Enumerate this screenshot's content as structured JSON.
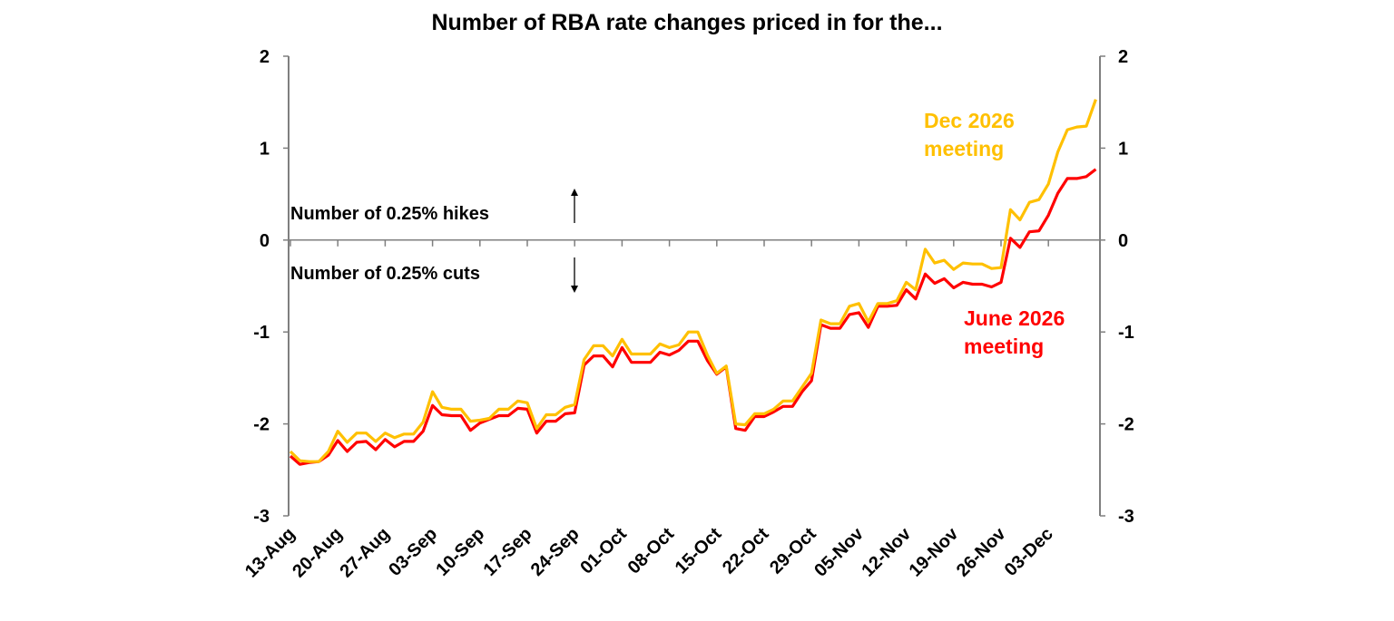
{
  "chart_data": {
    "type": "line",
    "title": "Number of RBA rate changes priced in for the...",
    "xlabel": "",
    "ylabel": "",
    "ylim": [
      -3,
      2
    ],
    "yticks": [
      2,
      1,
      0,
      -1,
      -2,
      -3
    ],
    "xtick_labels": [
      "13-Aug",
      "20-Aug",
      "27-Aug",
      "03-Sep",
      "10-Sep",
      "17-Sep",
      "24-Sep",
      "01-Oct",
      "08-Oct",
      "15-Oct",
      "22-Oct",
      "29-Oct",
      "05-Nov",
      "12-Nov",
      "19-Nov",
      "26-Nov",
      "03-Dec"
    ],
    "grid": false,
    "x": [
      "13-Aug",
      "14-Aug",
      "15-Aug",
      "18-Aug",
      "19-Aug",
      "20-Aug",
      "21-Aug",
      "22-Aug",
      "25-Aug",
      "26-Aug",
      "27-Aug",
      "28-Aug",
      "29-Aug",
      "01-Sep",
      "02-Sep",
      "03-Sep",
      "04-Sep",
      "05-Sep",
      "08-Sep",
      "09-Sep",
      "10-Sep",
      "11-Sep",
      "12-Sep",
      "15-Sep",
      "16-Sep",
      "17-Sep",
      "18-Sep",
      "19-Sep",
      "22-Sep",
      "23-Sep",
      "24-Sep",
      "25-Sep",
      "26-Sep",
      "29-Sep",
      "30-Sep",
      "01-Oct",
      "02-Oct",
      "03-Oct",
      "06-Oct",
      "07-Oct",
      "08-Oct",
      "09-Oct",
      "10-Oct",
      "13-Oct",
      "14-Oct",
      "15-Oct",
      "16-Oct",
      "17-Oct",
      "20-Oct",
      "21-Oct",
      "22-Oct",
      "23-Oct",
      "24-Oct",
      "27-Oct",
      "28-Oct",
      "29-Oct",
      "30-Oct",
      "31-Oct",
      "03-Nov",
      "04-Nov",
      "05-Nov",
      "06-Nov",
      "07-Nov",
      "10-Nov",
      "11-Nov",
      "12-Nov",
      "13-Nov",
      "14-Nov",
      "17-Nov",
      "18-Nov",
      "19-Nov",
      "20-Nov",
      "21-Nov",
      "24-Nov",
      "25-Nov",
      "26-Nov",
      "27-Nov",
      "28-Nov",
      "01-Dec",
      "02-Dec",
      "03-Dec",
      "04-Dec",
      "05-Dec",
      "08-Dec",
      "09-Dec",
      "10-Dec"
    ],
    "series": [
      {
        "name": "Dec 2026 meeting",
        "color": "#FFC000",
        "values": [
          -2.3,
          -2.4,
          -2.41,
          -2.41,
          -2.3,
          -2.08,
          -2.2,
          -2.1,
          -2.1,
          -2.19,
          -2.1,
          -2.15,
          -2.11,
          -2.11,
          -1.98,
          -1.65,
          -1.82,
          -1.84,
          -1.84,
          -1.97,
          -1.96,
          -1.94,
          -1.84,
          -1.84,
          -1.75,
          -1.77,
          -2.05,
          -1.9,
          -1.9,
          -1.82,
          -1.79,
          -1.3,
          -1.15,
          -1.15,
          -1.26,
          -1.08,
          -1.24,
          -1.24,
          -1.24,
          -1.13,
          -1.17,
          -1.14,
          -1.0,
          -1.0,
          -1.25,
          -1.45,
          -1.37,
          -2.0,
          -2.01,
          -1.89,
          -1.89,
          -1.84,
          -1.75,
          -1.75,
          -1.6,
          -1.45,
          -0.87,
          -0.91,
          -0.91,
          -0.72,
          -0.69,
          -0.89,
          -0.69,
          -0.69,
          -0.66,
          -0.46,
          -0.54,
          -0.1,
          -0.25,
          -0.22,
          -0.32,
          -0.25,
          -0.26,
          -0.26,
          -0.31,
          -0.3,
          0.33,
          0.22,
          0.41,
          0.44,
          0.61,
          0.96,
          1.2,
          1.23,
          1.24,
          1.53
        ]
      },
      {
        "name": "June 2026 meeting",
        "color": "#FF0000",
        "values": [
          -2.35,
          -2.44,
          -2.42,
          -2.41,
          -2.34,
          -2.18,
          -2.3,
          -2.2,
          -2.19,
          -2.28,
          -2.17,
          -2.25,
          -2.19,
          -2.19,
          -2.08,
          -1.8,
          -1.9,
          -1.91,
          -1.91,
          -2.07,
          -1.99,
          -1.95,
          -1.91,
          -1.91,
          -1.83,
          -1.84,
          -2.1,
          -1.97,
          -1.97,
          -1.89,
          -1.88,
          -1.36,
          -1.26,
          -1.26,
          -1.38,
          -1.17,
          -1.33,
          -1.33,
          -1.33,
          -1.22,
          -1.25,
          -1.2,
          -1.1,
          -1.1,
          -1.31,
          -1.46,
          -1.38,
          -2.05,
          -2.07,
          -1.92,
          -1.92,
          -1.87,
          -1.81,
          -1.81,
          -1.65,
          -1.53,
          -0.92,
          -0.96,
          -0.96,
          -0.81,
          -0.79,
          -0.95,
          -0.72,
          -0.72,
          -0.71,
          -0.54,
          -0.64,
          -0.37,
          -0.47,
          -0.42,
          -0.52,
          -0.46,
          -0.48,
          -0.48,
          -0.51,
          -0.46,
          0.02,
          -0.08,
          0.09,
          0.1,
          0.27,
          0.51,
          0.67,
          0.67,
          0.69,
          0.77
        ]
      }
    ],
    "annotations": {
      "hikes": "Number of 0.25% hikes",
      "cuts": "Number of 0.25% cuts",
      "dec_label_1": "Dec 2026",
      "dec_label_2": "meeting",
      "june_label_1": "June 2026",
      "june_label_2": "meeting"
    }
  }
}
